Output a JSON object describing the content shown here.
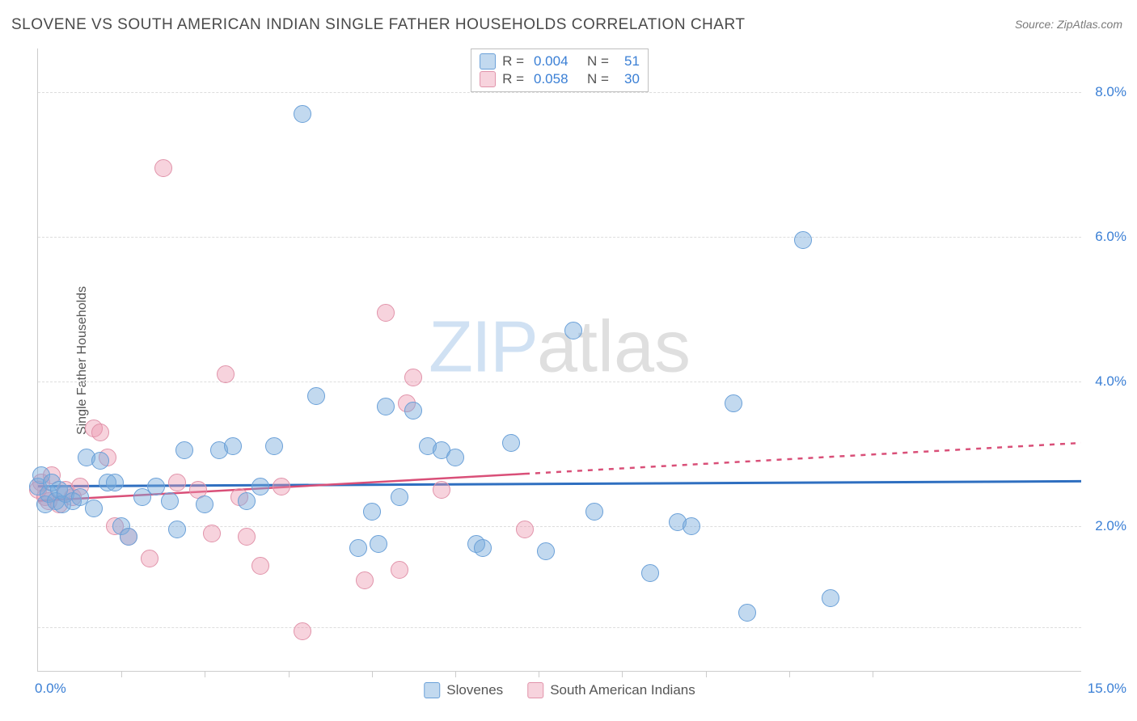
{
  "title": "SLOVENE VS SOUTH AMERICAN INDIAN SINGLE FATHER HOUSEHOLDS CORRELATION CHART",
  "source": "Source: ZipAtlas.com",
  "ylabel": "Single Father Households",
  "watermark": {
    "part1": "ZIP",
    "part2": "atlas"
  },
  "chart": {
    "type": "scatter",
    "xlim": [
      0,
      15
    ],
    "ylim": [
      0,
      8.6
    ],
    "x_left_label": "0.0%",
    "x_right_label": "15.0%",
    "x_ticks": [
      1.2,
      2.4,
      3.6,
      4.8,
      6.0,
      7.2,
      8.4,
      9.6,
      10.8,
      12.0
    ],
    "y_gridlines": [
      {
        "value": 0.6
      },
      {
        "value": 2.0,
        "label": "2.0%"
      },
      {
        "value": 4.0,
        "label": "4.0%"
      },
      {
        "value": 6.0,
        "label": "6.0%"
      },
      {
        "value": 8.0,
        "label": "8.0%"
      }
    ],
    "background_color": "#ffffff",
    "grid_color": "#dddddd",
    "axis_color": "#cccccc"
  },
  "series": [
    {
      "key": "slovenes",
      "label": "Slovenes",
      "fill": "rgba(120,170,220,0.45)",
      "stroke": "#6aa0d8",
      "marker_radius": 11,
      "R": "0.004",
      "N": "51",
      "trend": {
        "y_at_x0": 2.55,
        "y_at_xmax": 2.62,
        "color": "#2f6fc0",
        "width": 3,
        "dash_after_x": 15
      },
      "points": [
        [
          0.0,
          2.55
        ],
        [
          0.05,
          2.7
        ],
        [
          0.1,
          2.3
        ],
        [
          0.15,
          2.45
        ],
        [
          0.2,
          2.6
        ],
        [
          0.25,
          2.35
        ],
        [
          0.3,
          2.5
        ],
        [
          0.35,
          2.3
        ],
        [
          0.4,
          2.45
        ],
        [
          0.5,
          2.35
        ],
        [
          0.6,
          2.4
        ],
        [
          0.7,
          2.95
        ],
        [
          0.8,
          2.25
        ],
        [
          0.9,
          2.9
        ],
        [
          1.0,
          2.6
        ],
        [
          1.1,
          2.6
        ],
        [
          1.2,
          2.0
        ],
        [
          1.3,
          1.85
        ],
        [
          1.5,
          2.4
        ],
        [
          1.7,
          2.55
        ],
        [
          1.9,
          2.35
        ],
        [
          2.0,
          1.95
        ],
        [
          2.1,
          3.05
        ],
        [
          2.4,
          2.3
        ],
        [
          2.6,
          3.05
        ],
        [
          2.8,
          3.1
        ],
        [
          3.0,
          2.35
        ],
        [
          3.2,
          2.55
        ],
        [
          3.4,
          3.1
        ],
        [
          3.8,
          7.7
        ],
        [
          4.0,
          3.8
        ],
        [
          4.6,
          1.7
        ],
        [
          4.8,
          2.2
        ],
        [
          4.9,
          1.75
        ],
        [
          5.0,
          3.65
        ],
        [
          5.2,
          2.4
        ],
        [
          5.4,
          3.6
        ],
        [
          5.6,
          3.1
        ],
        [
          5.8,
          3.05
        ],
        [
          6.0,
          2.95
        ],
        [
          6.3,
          1.75
        ],
        [
          6.4,
          1.7
        ],
        [
          6.8,
          3.15
        ],
        [
          7.3,
          1.65
        ],
        [
          7.7,
          4.7
        ],
        [
          8.0,
          2.2
        ],
        [
          8.8,
          1.35
        ],
        [
          9.2,
          2.05
        ],
        [
          9.4,
          2.0
        ],
        [
          10.0,
          3.7
        ],
        [
          10.2,
          0.8
        ],
        [
          11.0,
          5.95
        ],
        [
          11.4,
          1.0
        ]
      ]
    },
    {
      "key": "south_american_indians",
      "label": "South American Indians",
      "fill": "rgba(235,150,175,0.42)",
      "stroke": "#e193aa",
      "marker_radius": 11,
      "R": "0.058",
      "N": "30",
      "trend": {
        "y_at_x0": 2.35,
        "y_at_xmax": 3.15,
        "color": "#d94f78",
        "width": 2.5,
        "dash_after_x": 7.0
      },
      "points": [
        [
          0.0,
          2.5
        ],
        [
          0.05,
          2.6
        ],
        [
          0.1,
          2.4
        ],
        [
          0.15,
          2.35
        ],
        [
          0.2,
          2.7
        ],
        [
          0.3,
          2.3
        ],
        [
          0.4,
          2.5
        ],
        [
          0.5,
          2.4
        ],
        [
          0.6,
          2.55
        ],
        [
          0.8,
          3.35
        ],
        [
          0.9,
          3.3
        ],
        [
          1.0,
          2.95
        ],
        [
          1.1,
          2.0
        ],
        [
          1.3,
          1.85
        ],
        [
          1.6,
          1.55
        ],
        [
          1.8,
          6.95
        ],
        [
          2.0,
          2.6
        ],
        [
          2.3,
          2.5
        ],
        [
          2.5,
          1.9
        ],
        [
          2.7,
          4.1
        ],
        [
          2.9,
          2.4
        ],
        [
          3.0,
          1.85
        ],
        [
          3.2,
          1.45
        ],
        [
          3.5,
          2.55
        ],
        [
          3.8,
          0.55
        ],
        [
          4.7,
          1.25
        ],
        [
          5.0,
          4.95
        ],
        [
          5.2,
          1.4
        ],
        [
          5.3,
          3.7
        ],
        [
          5.4,
          4.05
        ],
        [
          5.8,
          2.5
        ],
        [
          7.0,
          1.95
        ]
      ]
    }
  ],
  "legend_top": {
    "R_label": "R =",
    "N_label": "N ="
  },
  "text_colors": {
    "title": "#4a4a4a",
    "ylabel": "#555555",
    "tick_value": "#3a7fd5",
    "source": "#7a7a7a"
  }
}
